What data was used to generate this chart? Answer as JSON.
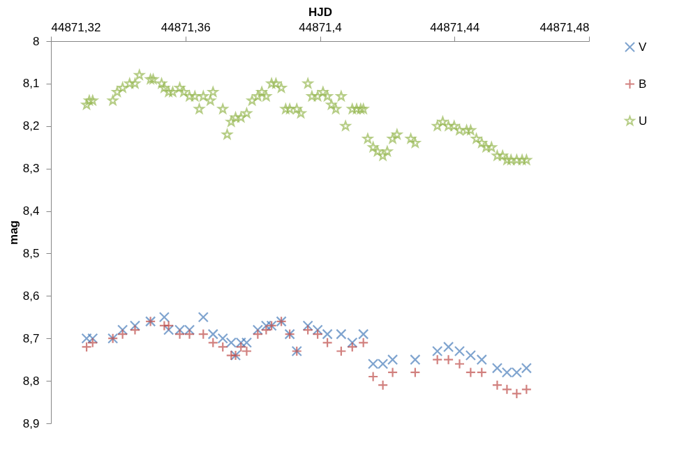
{
  "chart_data": {
    "type": "scatter",
    "xlabel": "HJD",
    "ylabel": "mag",
    "legend": "right",
    "grid": false,
    "xlim": [
      44871.32,
      44871.48
    ],
    "xticks": [
      {
        "value": 44871.32,
        "label": "44871,32"
      },
      {
        "value": 44871.36,
        "label": "44871,36"
      },
      {
        "value": 44871.4,
        "label": "44871,4"
      },
      {
        "value": 44871.44,
        "label": "44871,44"
      },
      {
        "value": 44871.48,
        "label": "44871,48"
      }
    ],
    "ylim": [
      8.9,
      8
    ],
    "yticks": [
      8,
      {
        "value": 8.1,
        "label": "8,1"
      },
      {
        "value": 8.2,
        "label": "8,2"
      },
      {
        "value": 8.3,
        "label": "8,3"
      },
      {
        "value": 8.4,
        "label": "8,4"
      },
      {
        "value": 8.5,
        "label": "8,5"
      },
      {
        "value": 8.6,
        "label": "8,6"
      },
      {
        "value": 8.7,
        "label": "8,7"
      },
      {
        "value": 8.8,
        "label": "8,8"
      },
      {
        "value": 8.9,
        "label": "8,9"
      }
    ],
    "series": [
      {
        "name": "V",
        "color": "#4a7ebb",
        "marker": "cross",
        "x": [
          44871.3306,
          44871.3324,
          44871.3384,
          44871.3413,
          44871.345,
          44871.3496,
          44871.3537,
          44871.355,
          44871.3583,
          44871.3612,
          44871.3653,
          44871.3682,
          44871.3711,
          44871.3736,
          44871.3749,
          44871.3765,
          44871.3782,
          44871.3815,
          44871.384,
          44871.3856,
          44871.3885,
          44871.391,
          44871.3931,
          44871.3964,
          44871.3993,
          44871.4022,
          44871.4063,
          44871.4096,
          44871.4129,
          44871.4158,
          44871.4187,
          44871.4216,
          44871.4283,
          44871.4349,
          44871.4382,
          44871.4415,
          44871.4448,
          44871.4481,
          44871.4527,
          44871.4556,
          44871.4585,
          44871.4614
        ],
        "values": [
          8.7,
          8.7,
          8.7,
          8.68,
          8.67,
          8.66,
          8.65,
          8.68,
          8.68,
          8.68,
          8.65,
          8.69,
          8.7,
          8.71,
          8.74,
          8.71,
          8.71,
          8.68,
          8.67,
          8.67,
          8.66,
          8.69,
          8.73,
          8.67,
          8.68,
          8.69,
          8.69,
          8.71,
          8.69,
          8.76,
          8.76,
          8.75,
          8.75,
          8.73,
          8.72,
          8.73,
          8.74,
          8.75,
          8.77,
          8.78,
          8.78,
          8.77
        ]
      },
      {
        "name": "B",
        "color": "#be4b48",
        "marker": "plus",
        "x": [
          44871.3306,
          44871.3324,
          44871.3384,
          44871.3413,
          44871.345,
          44871.3496,
          44871.3537,
          44871.355,
          44871.3583,
          44871.3612,
          44871.3653,
          44871.3682,
          44871.3711,
          44871.3736,
          44871.3749,
          44871.3765,
          44871.3782,
          44871.3815,
          44871.384,
          44871.3856,
          44871.3885,
          44871.391,
          44871.3931,
          44871.3964,
          44871.3993,
          44871.4022,
          44871.4063,
          44871.4096,
          44871.4129,
          44871.4158,
          44871.4187,
          44871.4216,
          44871.4283,
          44871.4349,
          44871.4382,
          44871.4415,
          44871.4448,
          44871.4481,
          44871.4527,
          44871.4556,
          44871.4585,
          44871.4614
        ],
        "values": [
          8.72,
          8.71,
          8.7,
          8.69,
          8.68,
          8.66,
          8.67,
          8.67,
          8.69,
          8.69,
          8.69,
          8.71,
          8.72,
          8.74,
          8.74,
          8.72,
          8.73,
          8.69,
          8.68,
          8.67,
          8.66,
          8.69,
          8.73,
          8.68,
          8.69,
          8.71,
          8.73,
          8.72,
          8.71,
          8.79,
          8.81,
          8.78,
          8.78,
          8.75,
          8.75,
          8.76,
          8.78,
          8.78,
          8.81,
          8.82,
          8.83,
          8.82
        ]
      },
      {
        "name": "U",
        "color": "#98b954",
        "marker": "star",
        "x": [
          44871.3306,
          44871.3314,
          44871.3324,
          44871.3384,
          44871.3397,
          44871.3413,
          44871.3434,
          44871.345,
          44871.3463,
          44871.3496,
          44871.3504,
          44871.3529,
          44871.3537,
          44871.355,
          44871.3562,
          44871.3583,
          44871.3595,
          44871.3612,
          44871.3628,
          44871.3641,
          44871.3653,
          44871.3674,
          44871.3682,
          44871.3711,
          44871.3724,
          44871.3736,
          44871.3749,
          44871.3765,
          44871.3782,
          44871.3798,
          44871.3815,
          44871.3827,
          44871.384,
          44871.3856,
          44871.3869,
          44871.3885,
          44871.3898,
          44871.391,
          44871.3931,
          44871.3943,
          44871.3964,
          44871.3976,
          44871.3993,
          44871.4009,
          44871.4022,
          44871.4034,
          44871.4047,
          44871.4063,
          44871.4076,
          44871.4096,
          44871.4109,
          44871.4121,
          44871.4129,
          44871.4142,
          44871.4158,
          44871.4171,
          44871.4187,
          44871.42,
          44871.4216,
          44871.4229,
          44871.427,
          44871.4283,
          44871.4349,
          44871.4365,
          44871.4382,
          44871.4399,
          44871.4415,
          44871.4436,
          44871.4448,
          44871.4465,
          44871.4481,
          44871.4494,
          44871.451,
          44871.4527,
          44871.4543,
          44871.4556,
          44871.4568,
          44871.4585,
          44871.4601,
          44871.4614
        ],
        "values": [
          8.15,
          8.14,
          8.14,
          8.14,
          8.12,
          8.11,
          8.1,
          8.1,
          8.08,
          8.09,
          8.09,
          8.1,
          8.11,
          8.12,
          8.12,
          8.11,
          8.12,
          8.13,
          8.13,
          8.16,
          8.13,
          8.14,
          8.12,
          8.16,
          8.22,
          8.19,
          8.18,
          8.18,
          8.17,
          8.14,
          8.13,
          8.12,
          8.13,
          8.1,
          8.1,
          8.11,
          8.16,
          8.16,
          8.16,
          8.17,
          8.1,
          8.13,
          8.13,
          8.12,
          8.13,
          8.15,
          8.16,
          8.13,
          8.2,
          8.16,
          8.16,
          8.16,
          8.16,
          8.23,
          8.25,
          8.26,
          8.27,
          8.26,
          8.23,
          8.22,
          8.23,
          8.24,
          8.2,
          8.19,
          8.2,
          8.2,
          8.21,
          8.21,
          8.21,
          8.23,
          8.24,
          8.25,
          8.25,
          8.27,
          8.27,
          8.28,
          8.28,
          8.28,
          8.28,
          8.28
        ]
      }
    ]
  }
}
